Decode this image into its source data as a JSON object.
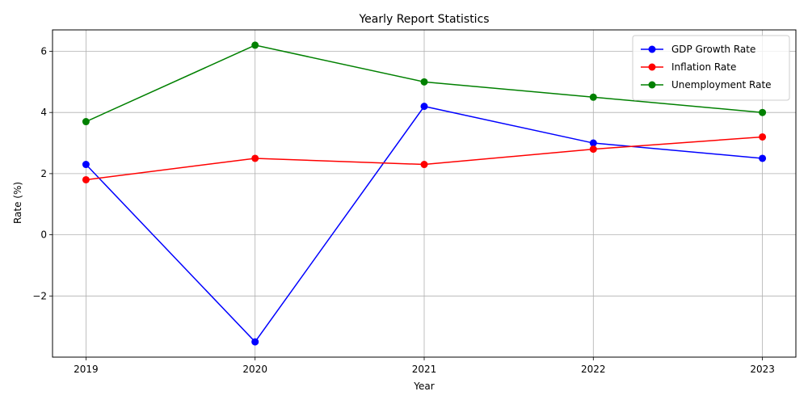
{
  "chart_data": {
    "type": "line",
    "title": "Yearly Report Statistics",
    "xlabel": "Year",
    "ylabel": "Rate (%)",
    "x": [
      "2019",
      "2020",
      "2021",
      "2022",
      "2023"
    ],
    "ylim": [
      -4.0,
      6.7
    ],
    "yticks": [
      -2,
      0,
      2,
      4,
      6
    ],
    "grid": true,
    "legend_position": "top-right",
    "series": [
      {
        "name": "GDP Growth Rate",
        "color": "#0000ff",
        "values": [
          2.3,
          -3.5,
          4.2,
          3.0,
          2.5
        ]
      },
      {
        "name": "Inflation Rate",
        "color": "#ff0000",
        "values": [
          1.8,
          2.5,
          2.3,
          2.8,
          3.2
        ]
      },
      {
        "name": "Unemployment Rate",
        "color": "#008000",
        "values": [
          3.7,
          6.2,
          5.0,
          4.5,
          4.0
        ]
      }
    ]
  }
}
